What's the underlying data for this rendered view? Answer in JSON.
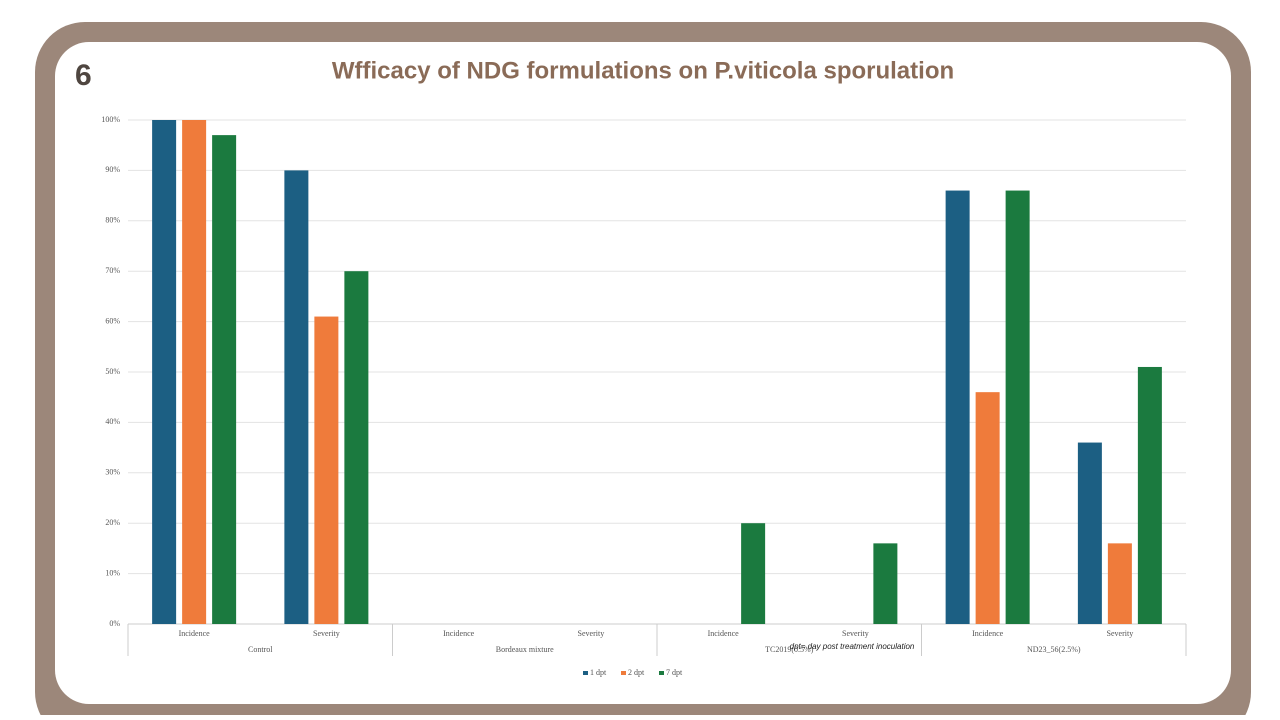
{
  "figure_number": "6",
  "chart_data": {
    "type": "bar",
    "title": "Wfficacy of NDG formulations on P.viticola sporulation",
    "categories": [
      "Incidence",
      "Severity",
      "Incidence",
      "Severity",
      "Incidence",
      "Severity",
      "Incidence",
      "Severity"
    ],
    "groups": [
      "Control",
      "Bordeaux mixture",
      "TC2019(0.5%)",
      "ND23_56(2.5%)"
    ],
    "series": [
      {
        "name": "1 dpt",
        "color": "#1c5f83",
        "values": [
          100,
          90,
          0,
          0,
          0,
          0,
          86,
          36
        ]
      },
      {
        "name": "2 dpt",
        "color": "#ef7b3b",
        "values": [
          100,
          61,
          0,
          0,
          0,
          0,
          46,
          16
        ]
      },
      {
        "name": "7 dpt",
        "color": "#1b7a3f",
        "values": [
          97,
          70,
          0,
          0,
          20,
          16,
          86,
          51
        ]
      }
    ],
    "annotation": "dpt= day post treatment inoculation",
    "ylim": [
      0,
      100
    ],
    "yticks": [
      {
        "value": 0,
        "label": "0%"
      },
      {
        "value": 10,
        "label": "10%"
      },
      {
        "value": 20,
        "label": "20%"
      },
      {
        "value": 30,
        "label": "30%"
      },
      {
        "value": 40,
        "label": "40%"
      },
      {
        "value": 50,
        "label": "50%"
      },
      {
        "value": 60,
        "label": "60%"
      },
      {
        "value": 70,
        "label": "70%"
      },
      {
        "value": 80,
        "label": "80%"
      },
      {
        "value": 90,
        "label": "90%"
      },
      {
        "value": 100,
        "label": "100%"
      }
    ],
    "grid": true
  }
}
